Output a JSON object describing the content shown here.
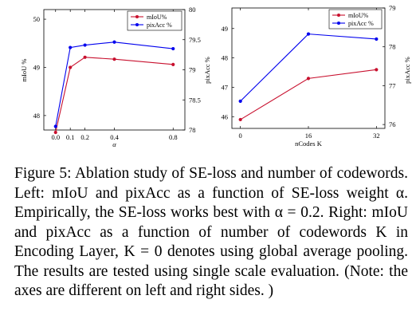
{
  "caption": "Figure 5: Ablation study of SE-loss and number of codewords. Left: mIoU and pixAcc as a function of SE-loss weight α. Empirically, the SE-loss works best with α = 0.2. Right: mIoU and pixAcc as a function of number of codewords K in Encoding Layer, K = 0 denotes using global average pooling. The results are tested using single scale evaluation. (Note: the axes are different on left and right sides. )",
  "chart_data": [
    {
      "type": "line",
      "x": [
        0.0,
        0.1,
        0.2,
        0.4,
        0.8
      ],
      "x_tick_labels": [
        "0.0",
        "0.1",
        "0.2",
        "0.4",
        "0.8"
      ],
      "xlabel": "α",
      "ylabel_left": "mIoU %",
      "ylabel_right": "pixAcc %",
      "ylim_left": [
        47.7,
        50.2
      ],
      "yticks_left": [
        48,
        49,
        50
      ],
      "ylim_right": [
        78,
        80
      ],
      "yticks_right": [
        78,
        78.5,
        79,
        79.5,
        80
      ],
      "y_tick_labels_right": [
        "78",
        "78.5",
        "79",
        "79.5",
        "80"
      ],
      "xlim": [
        -0.08,
        0.88
      ],
      "legend_position": "top-right",
      "grid": false,
      "series": [
        {
          "name": "mIoU%",
          "axis": "left",
          "color": "#c8102e",
          "marker": "circle",
          "values": [
            47.65,
            49.0,
            49.21,
            49.17,
            49.06
          ]
        },
        {
          "name": "pixAcc %",
          "axis": "right",
          "color": "#0000ee",
          "marker": "circle",
          "values": [
            78.06,
            79.37,
            79.41,
            79.46,
            79.35
          ]
        }
      ]
    },
    {
      "type": "line",
      "x": [
        0,
        16,
        32
      ],
      "x_tick_labels": [
        "0",
        "16",
        "32"
      ],
      "xlabel": "nCodes K",
      "ylabel_left": "",
      "ylabel_right": "pixAcc %",
      "ylim_left": [
        45.6,
        49.7
      ],
      "yticks_left": [
        46,
        47,
        48,
        49
      ],
      "ylim_right": [
        75.9,
        79.0
      ],
      "yticks_right": [
        76,
        77,
        78,
        79
      ],
      "y_tick_labels_right": [
        "76",
        "77",
        "78",
        "79"
      ],
      "xlim": [
        -2,
        34
      ],
      "legend_position": "top-right",
      "grid": false,
      "series": [
        {
          "name": "mIoU%",
          "axis": "left",
          "color": "#c8102e",
          "marker": "circle",
          "values": [
            45.9,
            47.3,
            47.6
          ]
        },
        {
          "name": "pixAcc %",
          "axis": "right",
          "color": "#0000ee",
          "marker": "circle",
          "values": [
            76.6,
            78.33,
            78.2
          ]
        }
      ]
    }
  ]
}
